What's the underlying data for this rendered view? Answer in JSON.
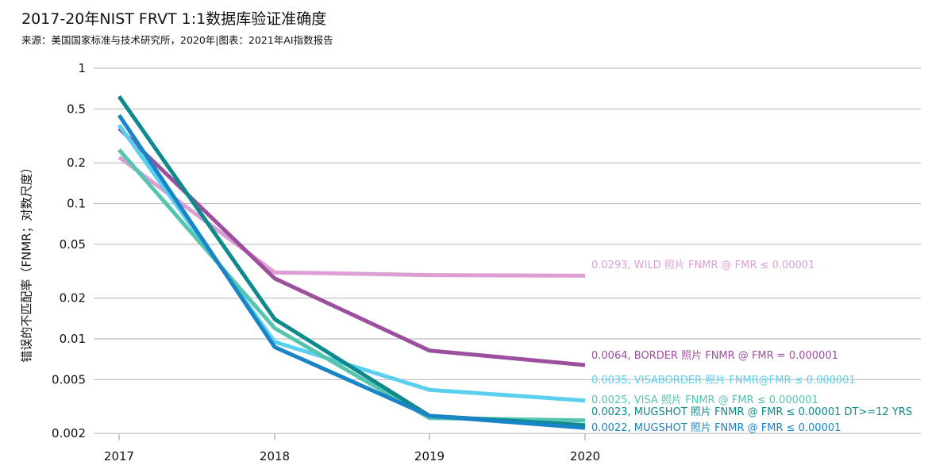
{
  "title": "2017-20年NIST FRVT 1:1数据库验证准确度",
  "subtitle": "来源：美国国家标准与技术研究所，2020年|图表：2021年AI指数报告",
  "chart_data": {
    "type": "line",
    "ylabel": "错误的不匹配率（FNMR；对数尺度）",
    "xlabel": "",
    "y_scale": "log",
    "ylim": [
      0.0017,
      1
    ],
    "yticks": [
      1,
      0.5,
      0.2,
      0.1,
      0.05,
      0.02,
      0.01,
      0.005,
      0.002
    ],
    "ytick_labels": [
      "1",
      "0.5",
      "0.2",
      "0.1",
      "0.05",
      "0.02",
      "0.01",
      "0.005",
      "0.002"
    ],
    "x": [
      "2017",
      "2018",
      "2019",
      "2020"
    ],
    "grid": "horizontal",
    "series": [
      {
        "label": "0.0293, WILD 照片 FNMR @ FMR ≤ 0.00001",
        "color": "#dd9fd3",
        "values": [
          0.22,
          0.031,
          0.0296,
          0.0293
        ]
      },
      {
        "label": "0.0064, BORDER 照片 FNMR @ FMR = 0.000001",
        "color": "#9d4f9f",
        "values": [
          0.36,
          0.028,
          0.0082,
          0.0064
        ]
      },
      {
        "label": "0.0035, VISABORDER 照片 FNMR@FMR ≤ 0.000001",
        "color": "#5bcfef",
        "values": [
          0.38,
          0.0095,
          0.0042,
          0.0035
        ]
      },
      {
        "label": "0.0025, VISA 照片 FNMR @ FMR ≤ 0.000001",
        "color": "#55c5b0",
        "values": [
          0.25,
          0.012,
          0.0026,
          0.0025
        ]
      },
      {
        "label": "0.0023, MUGSHOT 照片 FNMR @ FMR ≤ 0.00001 DT>=12 YRS",
        "color": "#0f8a8c",
        "values": [
          0.62,
          0.014,
          0.0027,
          0.0023
        ]
      },
      {
        "label": "0.0022, MUGSHOT 照片 FNMR @ FMR ≤ 0.00001",
        "color": "#1a85c6",
        "values": [
          0.45,
          0.0087,
          0.0027,
          0.0022
        ]
      }
    ]
  }
}
